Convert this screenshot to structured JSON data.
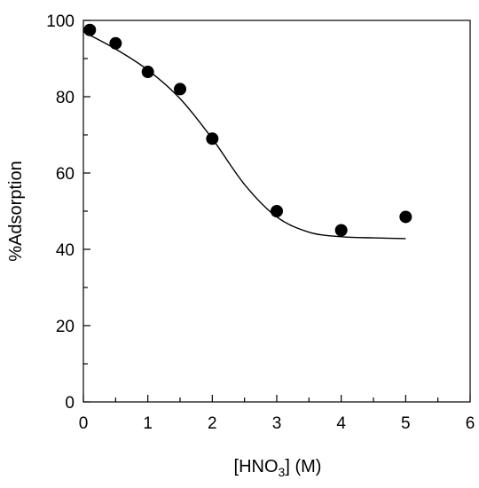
{
  "chart_data": {
    "type": "scatter",
    "xlabel_main": "[HNO",
    "xlabel_sub": "3",
    "xlabel_tail": "] (M)",
    "ylabel": "%Adsorption",
    "xlim": [
      0,
      6
    ],
    "ylim": [
      0,
      100
    ],
    "xticks": [
      0,
      1,
      2,
      3,
      4,
      5,
      6
    ],
    "yticks": [
      0,
      20,
      40,
      60,
      80,
      100
    ],
    "series": [
      {
        "marker": "filled-circle",
        "color": "#000000",
        "x": [
          0.1,
          0.5,
          1.0,
          1.5,
          2.0,
          3.0,
          4.0,
          5.0
        ],
        "y": [
          97.5,
          94.0,
          86.5,
          82.0,
          69.0,
          50.0,
          45.0,
          48.5
        ]
      }
    ],
    "fit_curve": {
      "style": "solid-line",
      "color": "#000000",
      "x": [
        0.0,
        0.5,
        1.0,
        1.5,
        2.0,
        2.5,
        3.0,
        3.5,
        4.0,
        4.5,
        5.0
      ],
      "y": [
        97.0,
        92.5,
        87.0,
        79.5,
        69.0,
        57.0,
        48.5,
        44.5,
        43.3,
        43.0,
        42.8
      ]
    }
  }
}
